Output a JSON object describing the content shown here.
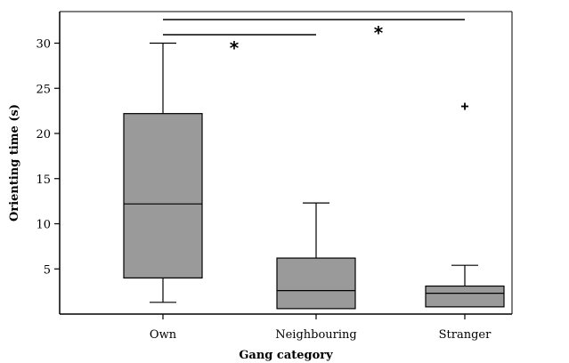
{
  "chart_data": {
    "type": "box",
    "xlabel": "Gang category",
    "ylabel": "Orienting time (s)",
    "ylim": [
      0,
      33
    ],
    "yticks": [
      5,
      10,
      15,
      20,
      25,
      30
    ],
    "grid": false,
    "box_color": "#9a9a9a",
    "categories": [
      "Own",
      "Neighbouring",
      "Stranger"
    ],
    "boxes": [
      {
        "category": "Own",
        "whisker_low": 1.3,
        "q1": 4.0,
        "median": 12.2,
        "q3": 22.2,
        "whisker_high": 30.0,
        "outliers": []
      },
      {
        "category": "Neighbouring",
        "whisker_low": 0.6,
        "q1": 0.6,
        "median": 2.6,
        "q3": 6.2,
        "whisker_high": 12.3,
        "outliers": []
      },
      {
        "category": "Stranger",
        "whisker_low": 0.8,
        "q1": 0.8,
        "median": 2.3,
        "q3": 3.1,
        "whisker_high": 5.4,
        "outliers": [
          23.0
        ]
      }
    ],
    "significance": [
      {
        "from": "Own",
        "to": "Neighbouring",
        "label": "*"
      },
      {
        "from": "Own",
        "to": "Stranger",
        "label": "*"
      }
    ]
  }
}
